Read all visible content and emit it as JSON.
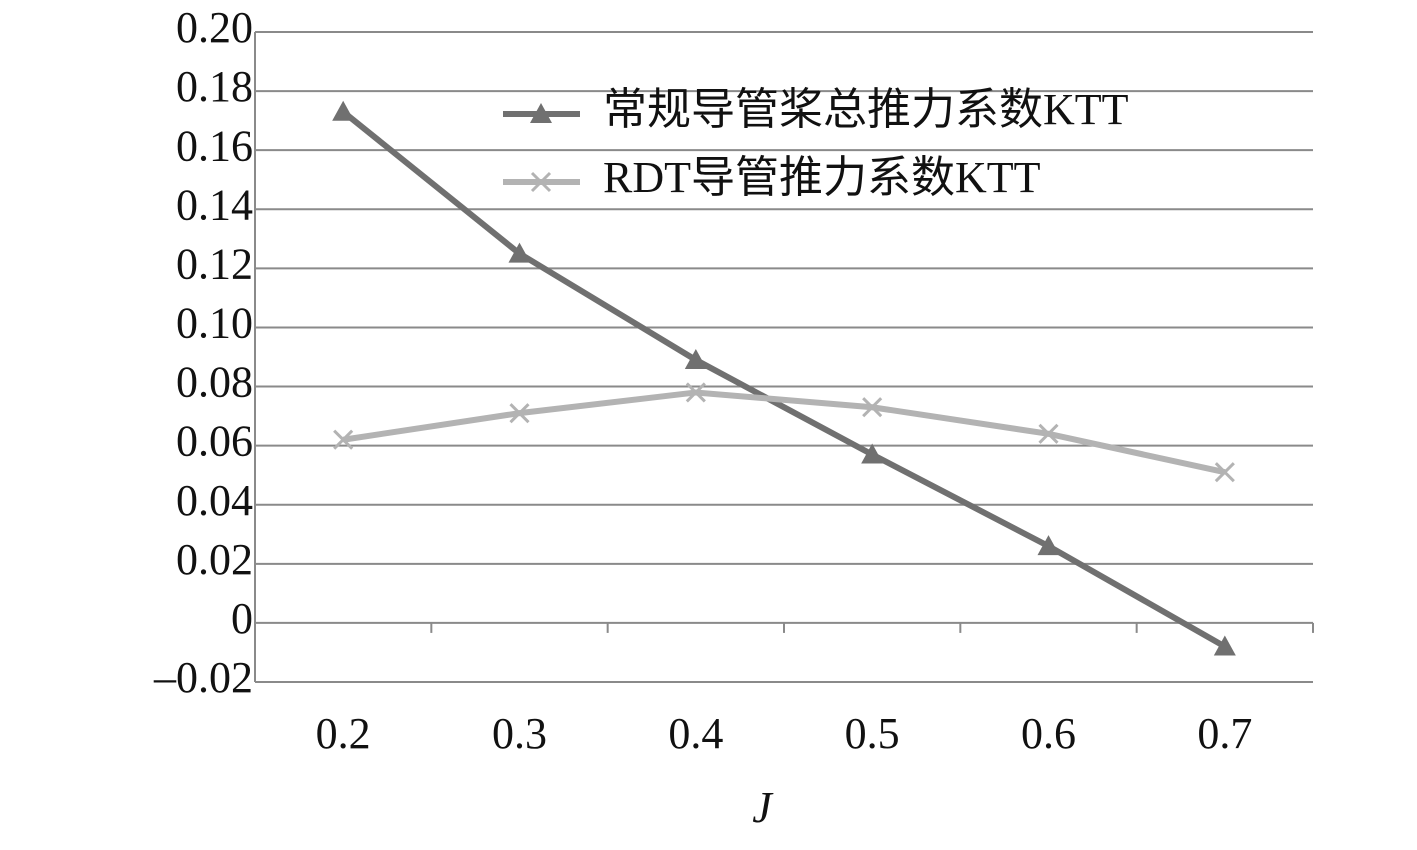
{
  "chart_data": {
    "type": "line",
    "x_label": "J",
    "categories": [
      "0.2",
      "0.3",
      "0.4",
      "0.5",
      "0.6",
      "0.7"
    ],
    "series": [
      {
        "name": "常规导管桨总推力系数KTT",
        "color": "#707070",
        "marker": "triangle",
        "values": [
          0.173,
          0.125,
          0.089,
          0.057,
          0.026,
          -0.008
        ]
      },
      {
        "name": "RDT导管推力系数KTT",
        "color": "#b3b3b3",
        "marker": "x",
        "values": [
          0.062,
          0.071,
          0.078,
          0.073,
          0.064,
          0.051
        ]
      }
    ],
    "ylim": [
      -0.02,
      0.2
    ],
    "yticks": [
      {
        "value": -0.02,
        "label": "–0.02"
      },
      0,
      0.02,
      0.04,
      0.06,
      0.08,
      {
        "value": 0.1,
        "label": "0.10"
      },
      0.12,
      0.14,
      0.16,
      0.18,
      {
        "value": 0.2,
        "label": "0.20"
      }
    ],
    "grid": true
  }
}
